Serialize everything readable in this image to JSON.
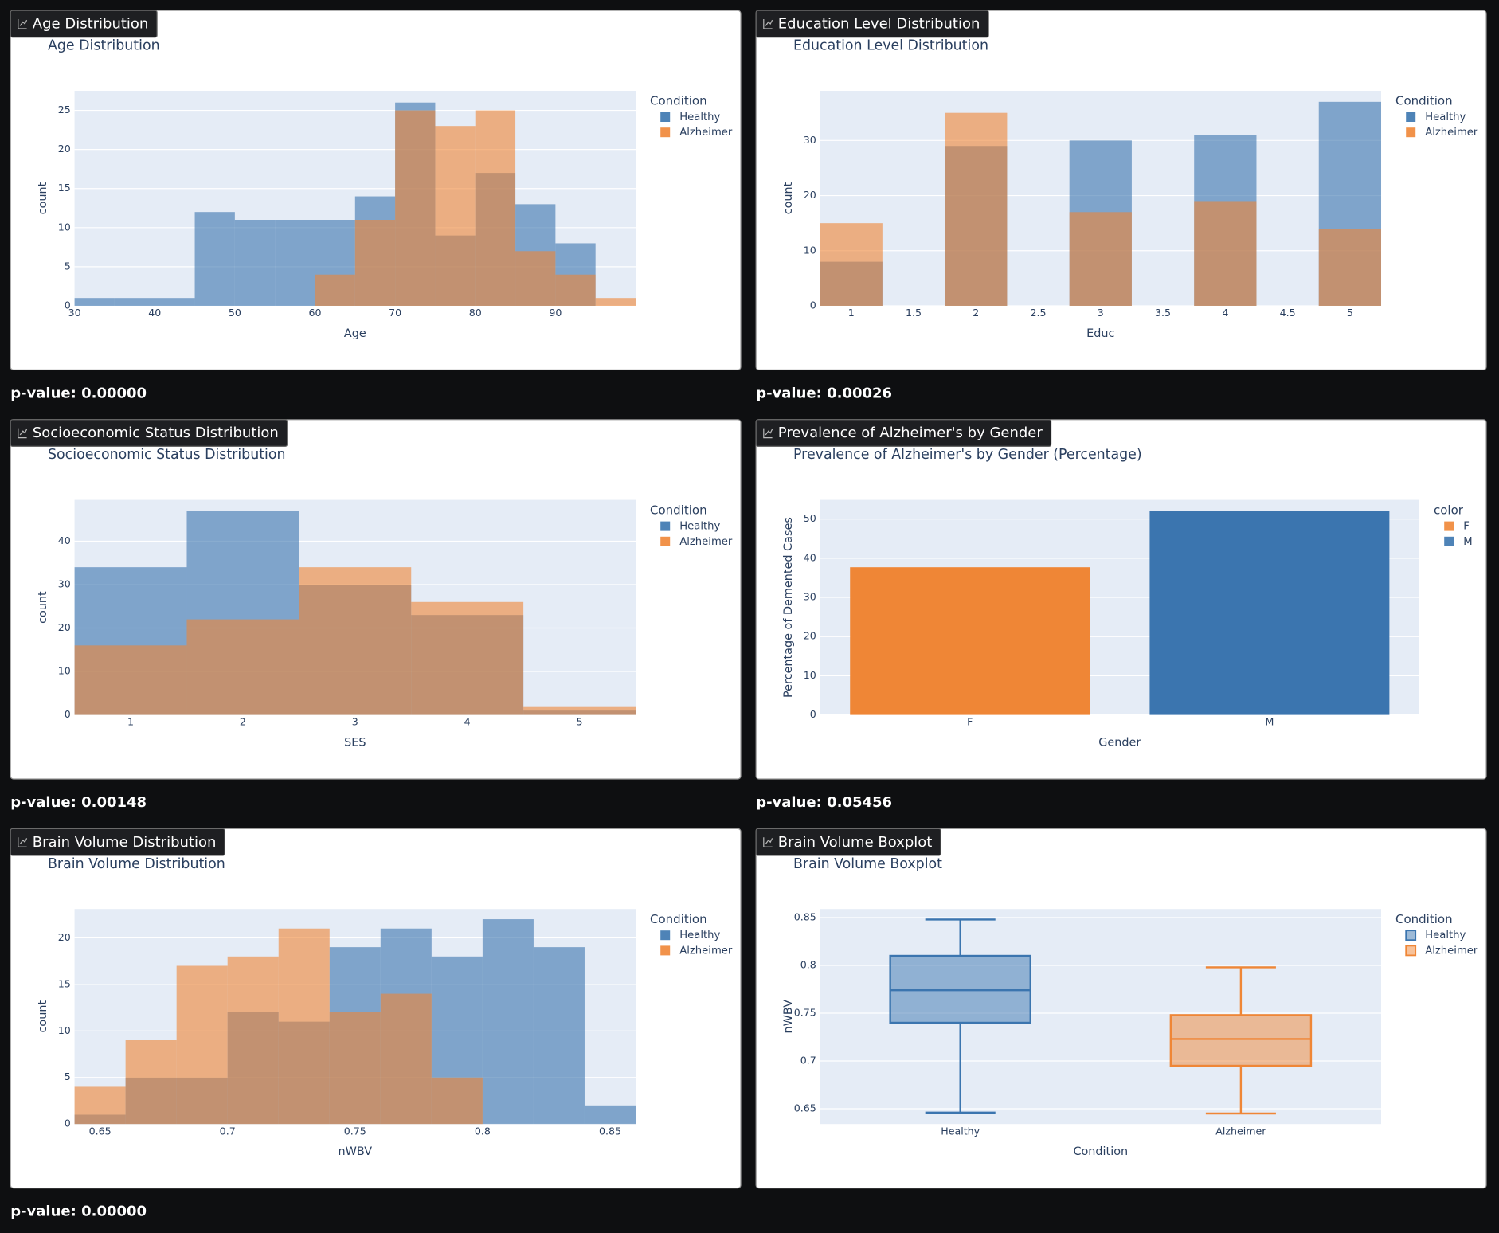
{
  "chart_data": [
    {
      "type": "histogram",
      "panel_title": "Age Distribution",
      "title": "Age Distribution",
      "caption": "p-value: 0.00000",
      "x_label": "Age",
      "y_label": "count",
      "legend_title": "Condition",
      "bins": [
        30,
        35,
        40,
        45,
        50,
        55,
        60,
        65,
        70,
        75,
        80,
        85,
        90,
        95,
        100
      ],
      "series": [
        {
          "name": "Healthy",
          "color": "#3b75af",
          "values": [
            1,
            1,
            1,
            12,
            11,
            11,
            11,
            14,
            26,
            9,
            17,
            13,
            8,
            0
          ]
        },
        {
          "name": "Alzheimer",
          "color": "#ef8636",
          "values": [
            0,
            0,
            0,
            0,
            0,
            0,
            4,
            11,
            25,
            23,
            25,
            7,
            4,
            1
          ]
        }
      ],
      "xlim": [
        30,
        100
      ],
      "ylim": [
        0,
        27.5
      ],
      "xticks": [
        30,
        40,
        50,
        60,
        70,
        80,
        90
      ],
      "yticks": [
        0,
        5,
        10,
        15,
        20,
        25
      ]
    },
    {
      "type": "histogram",
      "panel_title": "Education Level Distribution",
      "title": "Education Level Distribution",
      "caption": "p-value: 0.00026",
      "x_label": "Educ",
      "y_label": "count",
      "legend_title": "Condition",
      "bins": [
        0.75,
        1.25,
        1.75,
        2.25,
        2.75,
        3.25,
        3.75,
        4.25,
        4.75,
        5.25
      ],
      "series": [
        {
          "name": "Healthy",
          "color": "#3b75af",
          "values": [
            8,
            0,
            29,
            0,
            30,
            0,
            31,
            0,
            37
          ]
        },
        {
          "name": "Alzheimer",
          "color": "#ef8636",
          "values": [
            15,
            0,
            35,
            0,
            17,
            0,
            19,
            0,
            14
          ]
        }
      ],
      "xlim": [
        0.75,
        5.25
      ],
      "ylim": [
        0,
        39
      ],
      "xticks": [
        1,
        1.5,
        2,
        2.5,
        3,
        3.5,
        4,
        4.5,
        5
      ],
      "yticks": [
        0,
        10,
        20,
        30
      ]
    },
    {
      "type": "histogram",
      "panel_title": "Socioeconomic Status Distribution",
      "title": "Socioeconomic Status Distribution",
      "caption": "p-value: 0.00148",
      "x_label": "SES",
      "y_label": "count",
      "legend_title": "Condition",
      "bins": [
        0.5,
        1.5,
        2.5,
        3.5,
        4.5,
        5.5
      ],
      "series": [
        {
          "name": "Healthy",
          "color": "#3b75af",
          "values": [
            34,
            47,
            30,
            23,
            1
          ]
        },
        {
          "name": "Alzheimer",
          "color": "#ef8636",
          "values": [
            16,
            22,
            34,
            26,
            2
          ]
        }
      ],
      "xlim": [
        0.5,
        5.5
      ],
      "ylim": [
        0,
        49.5
      ],
      "xticks": [
        1,
        2,
        3,
        4,
        5
      ],
      "yticks": [
        0,
        10,
        20,
        30,
        40
      ]
    },
    {
      "type": "bar",
      "panel_title": "Prevalence of Alzheimer's by Gender",
      "title": "Prevalence of Alzheimer's by Gender (Percentage)",
      "caption": "p-value: 0.05456",
      "x_label": "Gender",
      "y_label": "Percentage of Demented Cases",
      "legend_title": "color",
      "categories": [
        "F",
        "M"
      ],
      "series": [
        {
          "name": "F",
          "color": "#ef8636",
          "values": [
            37.7,
            null
          ]
        },
        {
          "name": "M",
          "color": "#3b75af",
          "values": [
            null,
            52
          ]
        }
      ],
      "ylim": [
        0,
        54.9
      ],
      "yticks": [
        0,
        10,
        20,
        30,
        40,
        50
      ]
    },
    {
      "type": "histogram",
      "panel_title": "Brain Volume Distribution",
      "title": "Brain Volume Distribution",
      "caption": "p-value: 0.00000",
      "x_label": "nWBV",
      "y_label": "count",
      "legend_title": "Condition",
      "bins": [
        0.64,
        0.66,
        0.68,
        0.7,
        0.72,
        0.74,
        0.76,
        0.78,
        0.8,
        0.82,
        0.84,
        0.86
      ],
      "series": [
        {
          "name": "Healthy",
          "color": "#3b75af",
          "values": [
            1,
            5,
            5,
            12,
            11,
            19,
            21,
            18,
            22,
            19,
            2
          ]
        },
        {
          "name": "Alzheimer",
          "color": "#ef8636",
          "values": [
            4,
            9,
            17,
            18,
            21,
            12,
            14,
            5,
            0,
            0,
            0
          ]
        }
      ],
      "xlim": [
        0.64,
        0.86
      ],
      "ylim": [
        0,
        23.1
      ],
      "xticks": [
        0.65,
        0.7,
        0.75,
        0.8,
        0.85
      ],
      "yticks": [
        0,
        5,
        10,
        15,
        20
      ]
    },
    {
      "type": "box",
      "panel_title": "Brain Volume Boxplot",
      "title": "Brain Volume Boxplot",
      "x_label": "Condition",
      "y_label": "nWBV",
      "legend_title": "Condition",
      "categories": [
        "Healthy",
        "Alzheimer"
      ],
      "series": [
        {
          "name": "Healthy",
          "color": "#3b75af",
          "min": 0.646,
          "q1": 0.74,
          "median": 0.774,
          "q3": 0.81,
          "max": 0.848
        },
        {
          "name": "Alzheimer",
          "color": "#ef8636",
          "min": 0.645,
          "q1": 0.695,
          "median": 0.723,
          "q3": 0.748,
          "max": 0.798
        }
      ],
      "ylim": [
        0.634,
        0.859
      ],
      "yticks": [
        0.65,
        0.7,
        0.75,
        0.8,
        0.85
      ]
    }
  ]
}
